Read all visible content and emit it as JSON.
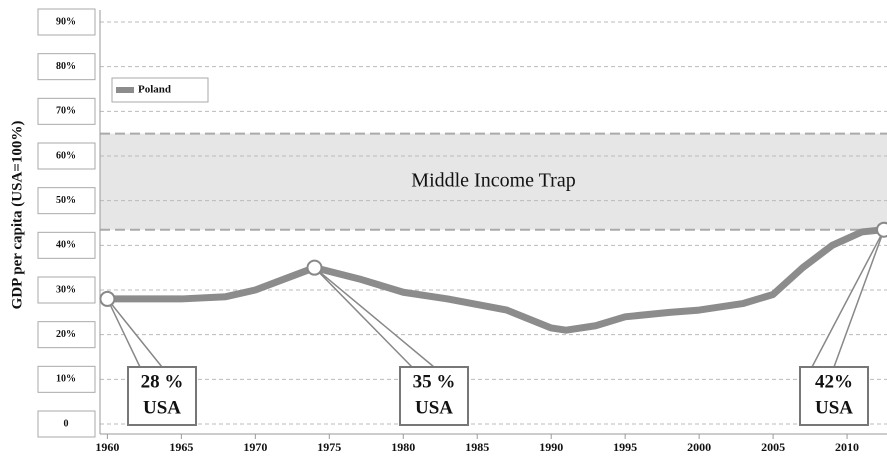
{
  "chart_data": {
    "type": "line",
    "ylabel": "GDP per capita (USA=100%)",
    "x": [
      1960,
      1965,
      1968,
      1970,
      1972,
      1974,
      1977,
      1980,
      1983,
      1987,
      1990,
      1991,
      1993,
      1995,
      1998,
      2000,
      2003,
      2005,
      2007,
      2009,
      2011,
      2012.5
    ],
    "series": [
      {
        "name": "Poland",
        "color": "#8c8c8c",
        "values": [
          28,
          28,
          28.5,
          30,
          32.5,
          35,
          32.5,
          29.5,
          28,
          25.5,
          21.5,
          21,
          22,
          24,
          25,
          25.5,
          27,
          29,
          35,
          40,
          43,
          43.5
        ]
      }
    ],
    "xlim": [
      1959.5,
      2012.7
    ],
    "xticks": [
      1960,
      1965,
      1970,
      1975,
      1980,
      1985,
      1990,
      1995,
      2000,
      2005,
      2010
    ],
    "ylim": [
      0,
      90
    ],
    "yticks": [
      0,
      {
        "value": 10,
        "label": "10%"
      },
      {
        "value": 20,
        "label": "20%"
      },
      {
        "value": 30,
        "label": "30%"
      },
      {
        "value": 40,
        "label": "40%"
      },
      {
        "value": 50,
        "label": "50%"
      },
      {
        "value": 60,
        "label": "60%"
      },
      {
        "value": 70,
        "label": "70%"
      },
      {
        "value": 80,
        "label": "80%"
      },
      {
        "value": 90,
        "label": "90%"
      }
    ],
    "grid": true,
    "legend": "upper left",
    "band": {
      "label": "Middle Income Trap",
      "range": [
        43.5,
        65
      ],
      "color": "#e6e6e6"
    },
    "annotations": [
      {
        "lines": [
          "28 %",
          "USA"
        ]
      },
      {
        "lines": [
          "35 %",
          "USA"
        ]
      },
      {
        "lines": [
          "42%",
          "USA"
        ]
      }
    ]
  }
}
